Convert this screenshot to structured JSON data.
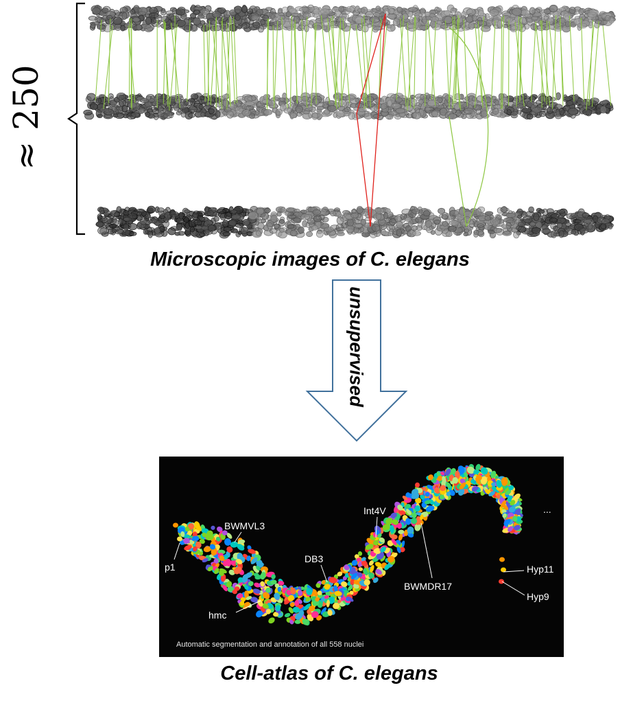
{
  "scale_label": "≈ 250",
  "top_caption": "Microscopic images of C. elegans",
  "arrow_label": "unsupervised",
  "bottom_caption": "Cell-atlas of C. elegans",
  "atlas": {
    "caption": "Automatic segmentation and annotation of all 558 nuclei",
    "labels": {
      "p1": "p1",
      "BWMVL3": "BWMVL3",
      "hmc": "hmc",
      "DB3": "DB3",
      "Int4V": "Int4V",
      "BWMDR17": "BWMDR17",
      "ellipsis": "...",
      "Hyp11": "Hyp11",
      "Hyp9": "Hyp9"
    }
  },
  "colors": {
    "match_line": "#8cc63f",
    "mismatch_line": "#e0201b",
    "arrow_stroke": "#41719c",
    "nuclei_gray": "#555555"
  }
}
